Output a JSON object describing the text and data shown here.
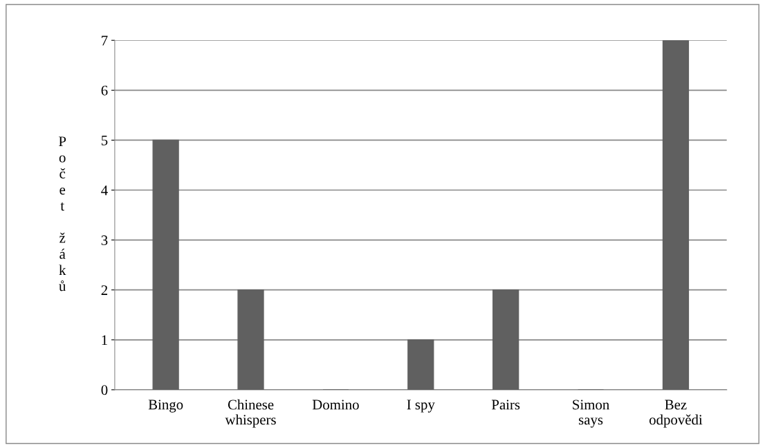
{
  "chart_data": {
    "type": "bar",
    "ylabel": "Počet žáků",
    "categories": [
      "Bingo",
      "Chinese\nwhispers",
      "Domino",
      "I spy",
      "Pairs",
      "Simon\nsays",
      "Bez\nodpovědi"
    ],
    "values": [
      5,
      2,
      0,
      1,
      2,
      0,
      7
    ],
    "color": "#606060",
    "ylim": [
      0,
      7
    ],
    "yticks": [
      0,
      1,
      2,
      3,
      4,
      5,
      6,
      7
    ],
    "grid": "y"
  }
}
